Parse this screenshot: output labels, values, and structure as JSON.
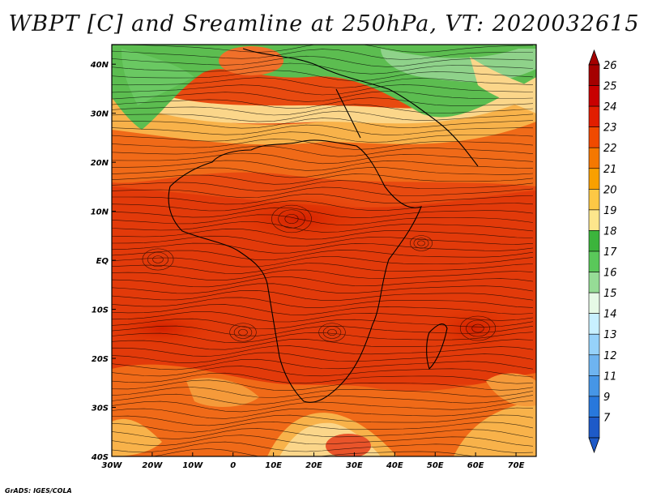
{
  "title": "WBPT [C] and Sreamline at 250hPa, VT: 2020032615",
  "credit": "GrADS: IGES/COLA",
  "map": {
    "lon_labels": [
      "30W",
      "20W",
      "10W",
      "0",
      "10E",
      "20E",
      "30E",
      "40E",
      "50E",
      "60E",
      "70E"
    ],
    "lat_labels": [
      "40N",
      "30N",
      "20N",
      "10N",
      "EQ",
      "10S",
      "20S",
      "30S",
      "40S"
    ],
    "lon_range": [
      -30,
      75
    ],
    "lat_range": [
      -40,
      44
    ]
  },
  "colorbar": {
    "labels": [
      "26",
      "25",
      "24",
      "23",
      "22",
      "21",
      "20",
      "19",
      "18",
      "17",
      "16",
      "15",
      "14",
      "13",
      "12",
      "11",
      "9",
      "7"
    ],
    "colors": [
      "#a50000",
      "#c80000",
      "#e11e00",
      "#f04a00",
      "#f57800",
      "#f9a000",
      "#fdc845",
      "#fde68c",
      "#3cb43c",
      "#5ac85a",
      "#96dc96",
      "#e6fae6",
      "#c8f0ff",
      "#96d2fa",
      "#6eb4f0",
      "#4696e6",
      "#2878dc",
      "#1e5ac8"
    ]
  }
}
